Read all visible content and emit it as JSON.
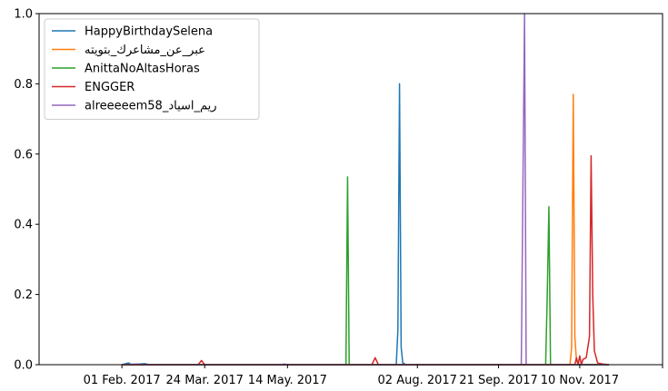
{
  "chart_data": {
    "type": "line",
    "title": "",
    "xlabel": "",
    "ylabel": "",
    "ylim": [
      0,
      1
    ],
    "yticks": [
      0.0,
      0.2,
      0.4,
      0.6,
      0.8,
      1.0
    ],
    "ytick_labels": [
      "0.0",
      "0.2",
      "0.4",
      "0.6",
      "0.8",
      "1.0"
    ],
    "xlim": [
      "2016-12-12",
      "2017-12-31"
    ],
    "xticks": [
      "2017-02-01",
      "2017-03-24",
      "2017-05-14",
      "2017-08-02",
      "2017-09-21",
      "2017-11-10",
      "2017-12-31"
    ],
    "xtick_labels": [
      "01 Feb. 2017",
      "24 Mar. 2017",
      "14 May. 2017",
      "02 Aug. 2017",
      "21 Sep. 2017",
      "10 Nov. 2017",
      ""
    ],
    "grid": false,
    "legend_position": "top-left",
    "series": [
      {
        "name": "HappyBirthdaySelena",
        "color": "#1f77b4",
        "points": [
          [
            "2017-02-01",
            0
          ],
          [
            "2017-02-05",
            0.005
          ],
          [
            "2017-02-07",
            0
          ],
          [
            "2017-02-15",
            0.003
          ],
          [
            "2017-02-18",
            0
          ],
          [
            "2017-07-20",
            0
          ],
          [
            "2017-07-21",
            0.1
          ],
          [
            "2017-07-22",
            0.8
          ],
          [
            "2017-07-23",
            0.05
          ],
          [
            "2017-07-24",
            0.005
          ],
          [
            "2017-07-26",
            0
          ],
          [
            "2017-11-28",
            0
          ]
        ]
      },
      {
        "name": "عبر_عن_مشاعرك_بتويته",
        "color": "#ff7f0e",
        "points": [
          [
            "2017-02-01",
            0
          ],
          [
            "2017-11-04",
            0
          ],
          [
            "2017-11-05",
            0.05
          ],
          [
            "2017-11-06",
            0.77
          ],
          [
            "2017-11-07",
            0.08
          ],
          [
            "2017-11-08",
            0.01
          ],
          [
            "2017-11-10",
            0
          ],
          [
            "2017-11-28",
            0
          ]
        ]
      },
      {
        "name": "AnittaNoAltasHoras",
        "color": "#2ca02c",
        "points": [
          [
            "2017-02-01",
            0
          ],
          [
            "2017-06-19",
            0
          ],
          [
            "2017-06-20",
            0.535
          ],
          [
            "2017-06-21",
            0
          ],
          [
            "2017-10-20",
            0
          ],
          [
            "2017-10-21",
            0.2
          ],
          [
            "2017-10-22",
            0.45
          ],
          [
            "2017-10-23",
            0
          ],
          [
            "2017-11-28",
            0
          ]
        ]
      },
      {
        "name": "ENGGER",
        "color": "#d62728",
        "points": [
          [
            "2017-02-01",
            0
          ],
          [
            "2017-03-20",
            0
          ],
          [
            "2017-03-22",
            0.012
          ],
          [
            "2017-03-24",
            0
          ],
          [
            "2017-07-05",
            0
          ],
          [
            "2017-07-07",
            0.02
          ],
          [
            "2017-07-09",
            0
          ],
          [
            "2017-11-07",
            0
          ],
          [
            "2017-11-08",
            0.02
          ],
          [
            "2017-11-09",
            0
          ],
          [
            "2017-11-10",
            0.025
          ],
          [
            "2017-11-11",
            0
          ],
          [
            "2017-11-12",
            0.015
          ],
          [
            "2017-11-14",
            0.02
          ],
          [
            "2017-11-16",
            0.08
          ],
          [
            "2017-11-17",
            0.595
          ],
          [
            "2017-11-18",
            0.2
          ],
          [
            "2017-11-19",
            0.04
          ],
          [
            "2017-11-21",
            0.005
          ],
          [
            "2017-11-24",
            0.002
          ],
          [
            "2017-11-28",
            0
          ]
        ]
      },
      {
        "name": "ريم_اسياد_alreeeeem58",
        "color": "#9467bd",
        "points": [
          [
            "2017-02-01",
            0
          ],
          [
            "2017-02-10",
            0.002
          ],
          [
            "2017-02-13",
            0
          ],
          [
            "2017-05-10",
            0
          ],
          [
            "2017-05-12",
            0.002
          ],
          [
            "2017-05-14",
            0
          ],
          [
            "2017-10-05",
            0
          ],
          [
            "2017-10-06",
            0.5
          ],
          [
            "2017-10-07",
            1.0
          ],
          [
            "2017-10-08",
            0
          ],
          [
            "2017-11-28",
            0
          ]
        ]
      }
    ]
  }
}
